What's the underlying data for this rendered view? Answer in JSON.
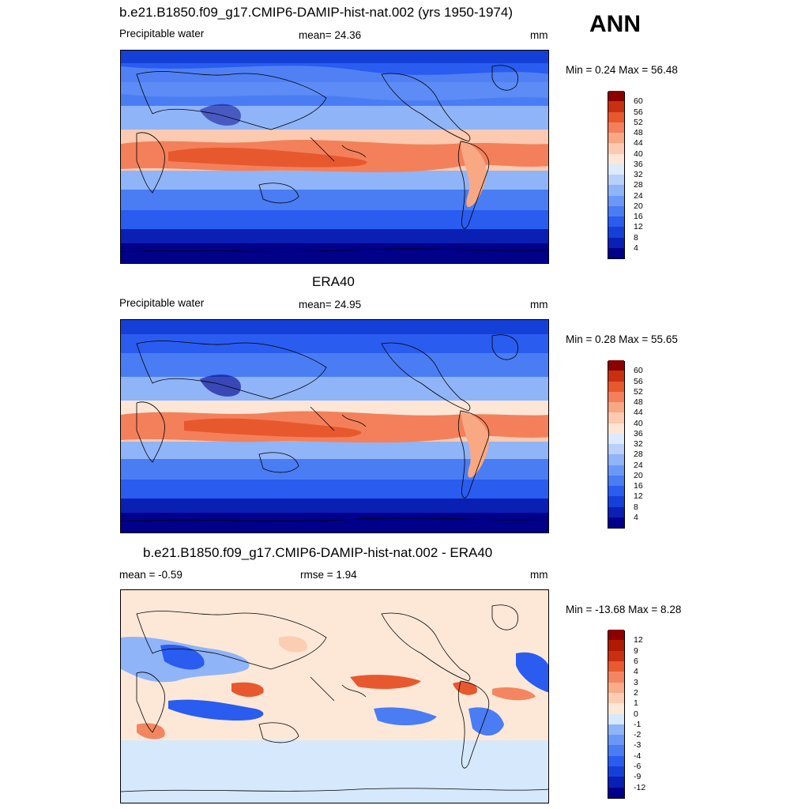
{
  "season": "ANN",
  "panels": [
    {
      "id": "model",
      "title": "b.e21.B1850.f09_g17.CMIP6-DAMIP-hist-nat.002 (yrs 1950-1974)",
      "left_label": "Precipitable water",
      "center_label": "mean=  24.36",
      "units": "mm",
      "minmax": "Min =   0.24 Max =  56.48",
      "colorbar_levels": [
        "4",
        "8",
        "12",
        "16",
        "20",
        "24",
        "28",
        "32",
        "36",
        "40",
        "44",
        "48",
        "52",
        "56",
        "60"
      ],
      "colorbar_colors": [
        "#00008b",
        "#0a20b4",
        "#1540d8",
        "#2a5cf0",
        "#4a7cf4",
        "#6a98f6",
        "#90b4f8",
        "#b8d0fa",
        "#dcebfc",
        "#fde6d6",
        "#fbcab0",
        "#f8a882",
        "#f3805a",
        "#e8582e",
        "#c83010",
        "#8b0000"
      ]
    },
    {
      "id": "obs",
      "title": "ERA40",
      "left_label": "Precipitable water",
      "center_label": "mean=  24.95",
      "units": "mm",
      "minmax": "Min =   0.28 Max =  55.65",
      "colorbar_levels": [
        "4",
        "8",
        "12",
        "16",
        "20",
        "24",
        "28",
        "32",
        "36",
        "40",
        "44",
        "48",
        "52",
        "56",
        "60"
      ],
      "colorbar_colors": [
        "#00008b",
        "#0a20b4",
        "#1540d8",
        "#2a5cf0",
        "#4a7cf4",
        "#6a98f6",
        "#90b4f8",
        "#b8d0fa",
        "#dcebfc",
        "#fde6d6",
        "#fbcab0",
        "#f8a882",
        "#f3805a",
        "#e8582e",
        "#c83010",
        "#8b0000"
      ]
    },
    {
      "id": "diff",
      "title": "b.e21.B1850.f09_g17.CMIP6-DAMIP-hist-nat.002 - ERA40",
      "left_label": "mean =  -0.59",
      "center_label": "rmse =   1.94",
      "units": "mm",
      "minmax": "Min = -13.68 Max =   8.28",
      "colorbar_levels": [
        "-12",
        "-9",
        "-6",
        "-4",
        "-3",
        "-2",
        "-1",
        "0",
        "1",
        "2",
        "3",
        "4",
        "6",
        "9",
        "12"
      ],
      "colorbar_colors": [
        "#00008b",
        "#0a20b4",
        "#1540d8",
        "#2a5cf0",
        "#4a7cf4",
        "#6a98f6",
        "#90b4f8",
        "#d6e8fb",
        "#fde8d8",
        "#fbcdb2",
        "#f8ac88",
        "#f38660",
        "#e85a30",
        "#c83010",
        "#b01a00",
        "#8b0000"
      ]
    }
  ],
  "chart_data": {
    "type": "heatmap",
    "variable": "Precipitable water",
    "units": "mm",
    "season": "ANN",
    "panels": [
      {
        "title": "b.e21.B1850.f09_g17.CMIP6-DAMIP-hist-nat.002 (yrs 1950-1974)",
        "mean": 24.36,
        "min": 0.24,
        "max": 56.48,
        "contour_levels": [
          4,
          8,
          12,
          16,
          20,
          24,
          28,
          32,
          36,
          40,
          44,
          48,
          52,
          56,
          60
        ]
      },
      {
        "title": "ERA40",
        "mean": 24.95,
        "min": 0.28,
        "max": 55.65,
        "contour_levels": [
          4,
          8,
          12,
          16,
          20,
          24,
          28,
          32,
          36,
          40,
          44,
          48,
          52,
          56,
          60
        ]
      },
      {
        "title": "b.e21.B1850.f09_g17.CMIP6-DAMIP-hist-nat.002 - ERA40",
        "mean": -0.59,
        "rmse": 1.94,
        "min": -13.68,
        "max": 8.28,
        "contour_levels": [
          -12,
          -9,
          -6,
          -4,
          -3,
          -2,
          -1,
          0,
          1,
          2,
          3,
          4,
          6,
          9,
          12
        ]
      }
    ]
  }
}
